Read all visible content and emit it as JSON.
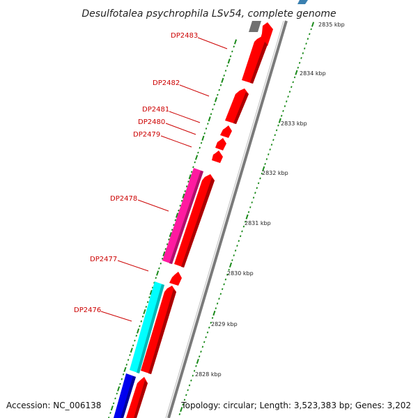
{
  "title": "Desulfotalea psychrophila LSv54, complete genome",
  "footer": {
    "accession": "Accession: NC_006138",
    "topology": "Topology: circular; Length: 3,523,383 bp; Genes: 3,202"
  },
  "colors": {
    "gene_label": "#cc0000",
    "forward_feature": "#ff0000",
    "tick": "#1a8a1a",
    "backbone": "#808080",
    "pink_feature": "#ff1aa0",
    "cyan_feature": "#00ffff",
    "blue_feature": "#0000ee",
    "gray_feature": "#777777",
    "teal_feature": "#3a80b0"
  },
  "kbp_labels": [
    "2835 kbp",
    "2834 kbp",
    "2833 kbp",
    "2832 kbp",
    "2831 kbp",
    "2830 kbp",
    "2829 kbp",
    "2828 kbp"
  ],
  "gene_labels": [
    "DP2483",
    "DP2482",
    "DP2481",
    "DP2480",
    "DP2479",
    "DP2478",
    "DP2477",
    "DP2476"
  ]
}
